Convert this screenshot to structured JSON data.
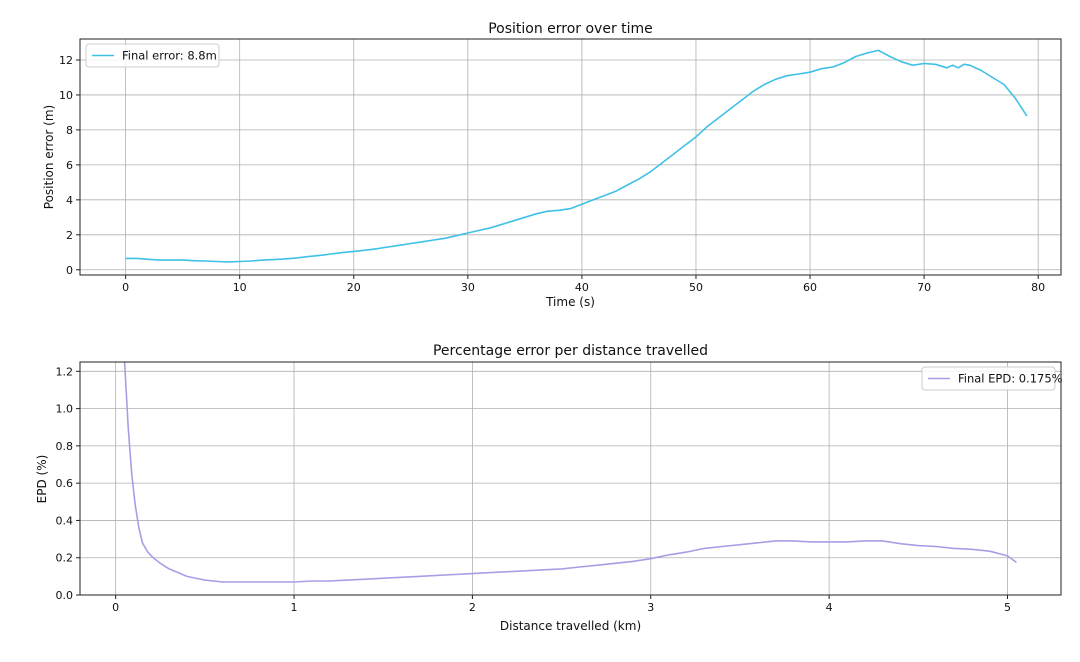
{
  "chart_data": [
    {
      "type": "line",
      "title": "Position error over time",
      "xlabel": "Time (s)",
      "ylabel": "Position error (m)",
      "xlim": [
        -4,
        82
      ],
      "ylim": [
        -0.3,
        13.2
      ],
      "xticks": [
        0,
        10,
        20,
        30,
        40,
        50,
        60,
        70,
        80
      ],
      "yticks": [
        0,
        2,
        4,
        6,
        8,
        10,
        12
      ],
      "grid": true,
      "legend_position": "top-left",
      "series": [
        {
          "name": "Final error: 8.8m",
          "color": "#3fc1e6",
          "x": [
            0,
            1,
            2,
            3,
            4,
            5,
            6,
            7,
            8,
            9,
            10,
            11,
            12,
            13,
            14,
            15,
            16,
            17,
            18,
            19,
            20,
            21,
            22,
            23,
            24,
            25,
            26,
            27,
            28,
            29,
            30,
            31,
            32,
            33,
            34,
            35,
            36,
            37,
            38,
            39,
            40,
            41,
            42,
            43,
            44,
            45,
            46,
            47,
            48,
            49,
            50,
            51,
            52,
            53,
            54,
            55,
            56,
            57,
            58,
            59,
            60,
            61,
            62,
            63,
            64,
            65,
            66,
            67,
            68,
            69,
            70,
            71,
            72,
            72.5,
            73,
            73.5,
            74,
            75,
            76,
            77,
            78,
            79
          ],
          "y": [
            0.65,
            0.65,
            0.6,
            0.55,
            0.55,
            0.55,
            0.52,
            0.5,
            0.47,
            0.45,
            0.47,
            0.5,
            0.55,
            0.58,
            0.62,
            0.68,
            0.75,
            0.82,
            0.9,
            0.98,
            1.05,
            1.12,
            1.2,
            1.3,
            1.4,
            1.5,
            1.6,
            1.7,
            1.8,
            1.95,
            2.1,
            2.25,
            2.4,
            2.6,
            2.8,
            3.0,
            3.2,
            3.35,
            3.4,
            3.5,
            3.75,
            4.0,
            4.25,
            4.5,
            4.85,
            5.2,
            5.6,
            6.1,
            6.6,
            7.1,
            7.6,
            8.2,
            8.7,
            9.2,
            9.7,
            10.2,
            10.6,
            10.9,
            11.1,
            11.2,
            11.3,
            11.5,
            11.6,
            11.85,
            12.2,
            12.4,
            12.55,
            12.2,
            11.9,
            11.7,
            11.8,
            11.75,
            11.55,
            11.7,
            11.55,
            11.75,
            11.7,
            11.4,
            11.0,
            10.6,
            9.8,
            8.8
          ]
        }
      ]
    },
    {
      "type": "line",
      "title": "Percentage error per distance travelled",
      "xlabel": "Distance travelled (km)",
      "ylabel": "EPD (%)",
      "xlim": [
        -0.2,
        5.3
      ],
      "ylim": [
        0,
        1.25
      ],
      "xticks": [
        0,
        1,
        2,
        3,
        4,
        5
      ],
      "yticks": [
        0.0,
        0.2,
        0.4,
        0.6,
        0.8,
        1.0,
        1.2
      ],
      "ytick_labels": [
        "0.0",
        "0.2",
        "0.4",
        "0.6",
        "0.8",
        "1.0",
        "1.2"
      ],
      "grid": true,
      "legend_position": "top-right",
      "series": [
        {
          "name": "Final EPD: 0.175%",
          "color": "#a99ee6",
          "x": [
            0.05,
            0.07,
            0.09,
            0.11,
            0.13,
            0.15,
            0.18,
            0.21,
            0.25,
            0.3,
            0.35,
            0.4,
            0.5,
            0.6,
            0.7,
            0.8,
            0.9,
            1.0,
            1.1,
            1.2,
            1.3,
            1.4,
            1.5,
            1.6,
            1.7,
            1.8,
            1.9,
            2.0,
            2.1,
            2.2,
            2.3,
            2.4,
            2.5,
            2.6,
            2.7,
            2.8,
            2.9,
            3.0,
            3.1,
            3.2,
            3.3,
            3.4,
            3.5,
            3.6,
            3.7,
            3.8,
            3.9,
            4.0,
            4.1,
            4.2,
            4.3,
            4.4,
            4.5,
            4.6,
            4.7,
            4.8,
            4.9,
            5.0,
            5.05
          ],
          "y": [
            1.25,
            0.9,
            0.65,
            0.48,
            0.36,
            0.28,
            0.23,
            0.2,
            0.17,
            0.14,
            0.12,
            0.1,
            0.08,
            0.07,
            0.07,
            0.07,
            0.07,
            0.07,
            0.075,
            0.075,
            0.08,
            0.085,
            0.09,
            0.095,
            0.1,
            0.105,
            0.11,
            0.115,
            0.12,
            0.125,
            0.13,
            0.135,
            0.14,
            0.15,
            0.16,
            0.17,
            0.18,
            0.195,
            0.215,
            0.23,
            0.25,
            0.26,
            0.27,
            0.28,
            0.29,
            0.29,
            0.285,
            0.285,
            0.285,
            0.29,
            0.29,
            0.275,
            0.265,
            0.26,
            0.25,
            0.245,
            0.235,
            0.21,
            0.175
          ]
        }
      ]
    }
  ]
}
